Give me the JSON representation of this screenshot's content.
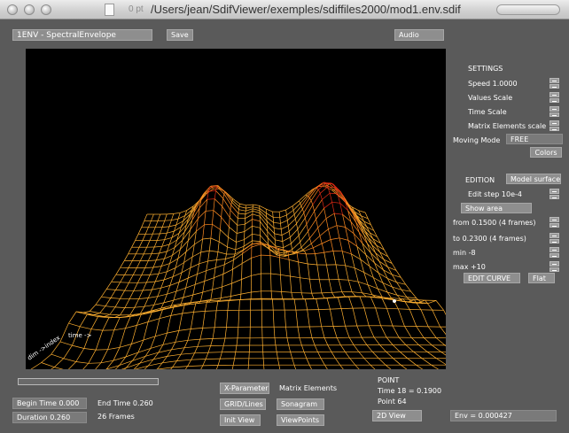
{
  "window": {
    "title": "/Users/jean/SdifViewer/exemples/sdiffiles2000/mod1.env.sdif",
    "ghost_text": "0 pt"
  },
  "toolbar": {
    "matrix_label": "1ENV - SpectralEnvelope",
    "save_label": "Save",
    "audio_label": "Audio"
  },
  "settings": {
    "heading": "SETTINGS",
    "speed": "Speed 1.0000",
    "values_scale": "Values Scale",
    "time_scale": "Time Scale",
    "matrix_elements_scale": "Matrix Elements scale",
    "moving_mode_label": "Moving Mode",
    "moving_mode_value": "FREE",
    "colors_label": "Colors"
  },
  "edition": {
    "heading": "EDITION",
    "model_surface": "Model surface",
    "edit_step": "Edit step 10e-4",
    "show_area": "Show area",
    "from": "from 0.1500 (4 frames)",
    "to": "to 0.2300 (4 frames)",
    "min": "min -8",
    "max": "max +10",
    "edit_curve": "EDIT CURVE",
    "flat": "Flat"
  },
  "viewport": {
    "axis_time": "time",
    "axis_dim": "dim ->index",
    "colors": {
      "low": "#ffb030",
      "mid": "#ff8a20",
      "high": "#e02a14"
    }
  },
  "playback": {
    "progress": 0.0
  },
  "bottom": {
    "begin_time": "Begin Time 0.000",
    "end_time": "End Time 0.260",
    "duration": "Duration 0.260",
    "frames": "26 Frames",
    "x_parameter": "X-Parameter",
    "matrix_elements": "Matrix Elements",
    "grid_lines": "GRID/Lines",
    "sonagram": "Sonagram",
    "init_view": "Init View",
    "view_points": "ViewPoints",
    "point_heading": "POINT",
    "point_time": "Time 18 = 0.1900",
    "point_index": "Point 64",
    "view_2d": "2D View",
    "env_value": "Env = 0.000427"
  }
}
